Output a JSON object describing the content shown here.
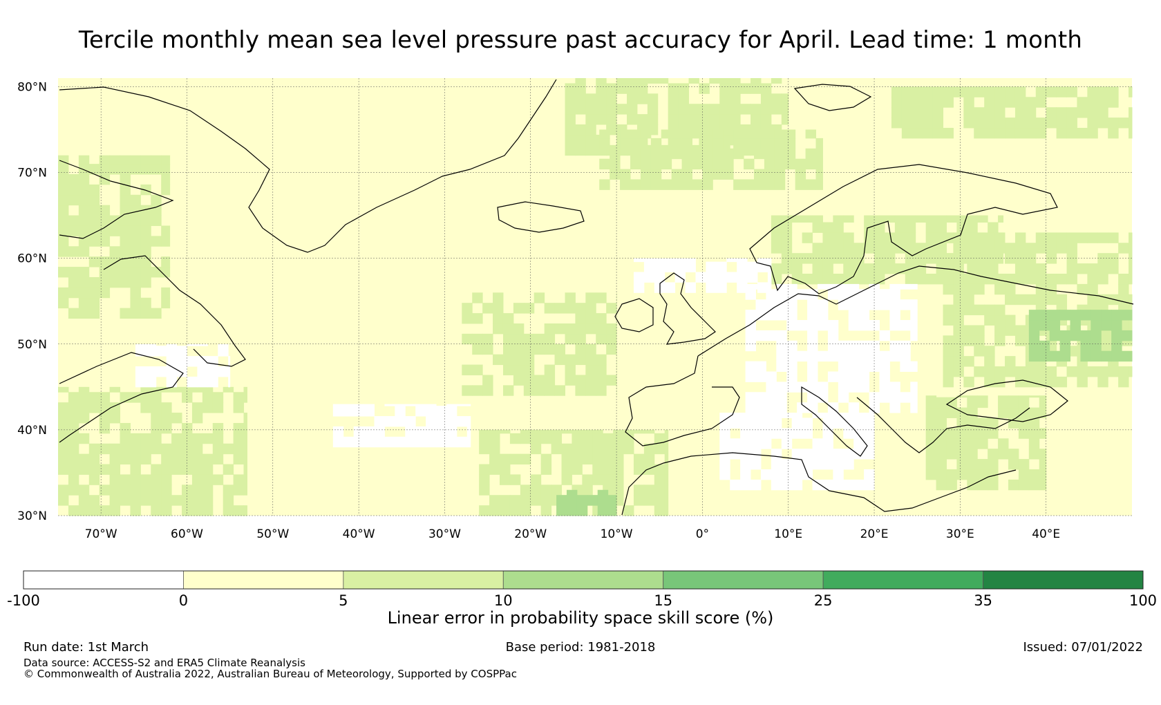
{
  "title": "Tercile monthly mean sea level pressure past accuracy for April. Lead time: 1 month",
  "map": {
    "lat_ticks": [
      "80°N",
      "70°N",
      "60°N",
      "50°N",
      "40°N",
      "30°N"
    ],
    "lat_values": [
      80,
      70,
      60,
      50,
      40,
      30
    ],
    "lon_ticks": [
      "70°W",
      "60°W",
      "50°W",
      "40°W",
      "30°W",
      "20°W",
      "10°W",
      "0°",
      "10°E",
      "20°E",
      "30°E",
      "40°E"
    ],
    "lon_values": [
      -70,
      -60,
      -50,
      -40,
      -30,
      -20,
      -10,
      0,
      10,
      20,
      30,
      40
    ],
    "extent": {
      "lon_min": -75,
      "lon_max": 50,
      "lat_min": 30,
      "lat_max": 81
    },
    "grid_lines": true,
    "background_class": "0 to 5",
    "regions": [
      {
        "name": "arctic-ocean-10-15",
        "class": 2,
        "lon": [
          -16,
          10
        ],
        "lat": [
          72,
          81
        ]
      },
      {
        "name": "norwegian-sea",
        "class": 2,
        "lon": [
          -12,
          14
        ],
        "lat": [
          68,
          75
        ]
      },
      {
        "name": "barents-sea",
        "class": 2,
        "lon": [
          22,
          50
        ],
        "lat": [
          74,
          80
        ]
      },
      {
        "name": "labrador",
        "class": 2,
        "lon": [
          -75,
          -62
        ],
        "lat": [
          53,
          72
        ]
      },
      {
        "name": "western-atlantic",
        "class": 2,
        "lon": [
          -75,
          -53
        ],
        "lat": [
          30,
          45
        ]
      },
      {
        "name": "mid-atlantic",
        "class": 2,
        "lon": [
          -28,
          -10
        ],
        "lat": [
          44,
          56
        ]
      },
      {
        "name": "subtropical-atlantic",
        "class": 2,
        "lon": [
          -26,
          -4
        ],
        "lat": [
          30,
          40
        ]
      },
      {
        "name": "scandinavia",
        "class": 2,
        "lon": [
          8,
          35
        ],
        "lat": [
          57,
          65
        ]
      },
      {
        "name": "western-russia",
        "class": 2,
        "lon": [
          28,
          50
        ],
        "lat": [
          45,
          63
        ]
      },
      {
        "name": "eastern-mediterranean",
        "class": 2,
        "lon": [
          26,
          40
        ],
        "lat": [
          33,
          44
        ]
      },
      {
        "name": "ural-10-15",
        "class": 3,
        "lon": [
          38,
          50
        ],
        "lat": [
          48,
          54
        ]
      },
      {
        "name": "canary-10-15",
        "class": 3,
        "lon": [
          -17,
          -10
        ],
        "lat": [
          30,
          33
        ]
      },
      {
        "name": "central-europe-negative",
        "class": 0,
        "lon": [
          5,
          25
        ],
        "lat": [
          42,
          57
        ]
      },
      {
        "name": "mediterranean-negative",
        "class": 0,
        "lon": [
          2,
          20
        ],
        "lat": [
          33,
          42
        ]
      },
      {
        "name": "british-isles-negative",
        "class": 0,
        "lon": [
          -8,
          8
        ],
        "lat": [
          56,
          60
        ]
      },
      {
        "name": "north-atlantic-negative",
        "class": 0,
        "lon": [
          -43,
          -27
        ],
        "lat": [
          38,
          43
        ]
      },
      {
        "name": "newfoundland-negative",
        "class": 0,
        "lon": [
          -66,
          -55
        ],
        "lat": [
          45,
          50
        ]
      }
    ]
  },
  "colorbar": {
    "boundaries": [
      "-100",
      "0",
      "5",
      "10",
      "15",
      "25",
      "35",
      "100"
    ],
    "boundary_values": [
      -100,
      0,
      5,
      10,
      15,
      25,
      35,
      100
    ],
    "colors": [
      "#ffffff",
      "#ffffcc",
      "#d9f0a3",
      "#addd8e",
      "#78c679",
      "#41ab5d",
      "#238443"
    ],
    "label": "Linear error in probability space skill score (%)"
  },
  "footer": {
    "run_date": "Run date: 1st March",
    "base_period": "Base period: 1981-2018",
    "issued": "Issued: 07/01/2022",
    "data_source": "Data source: ACCESS-S2 and ERA5 Climate Reanalysis",
    "copyright": "© Commonwealth of Australia 2022, Australian Bureau of Meteorology, Supported by COSPPac"
  }
}
